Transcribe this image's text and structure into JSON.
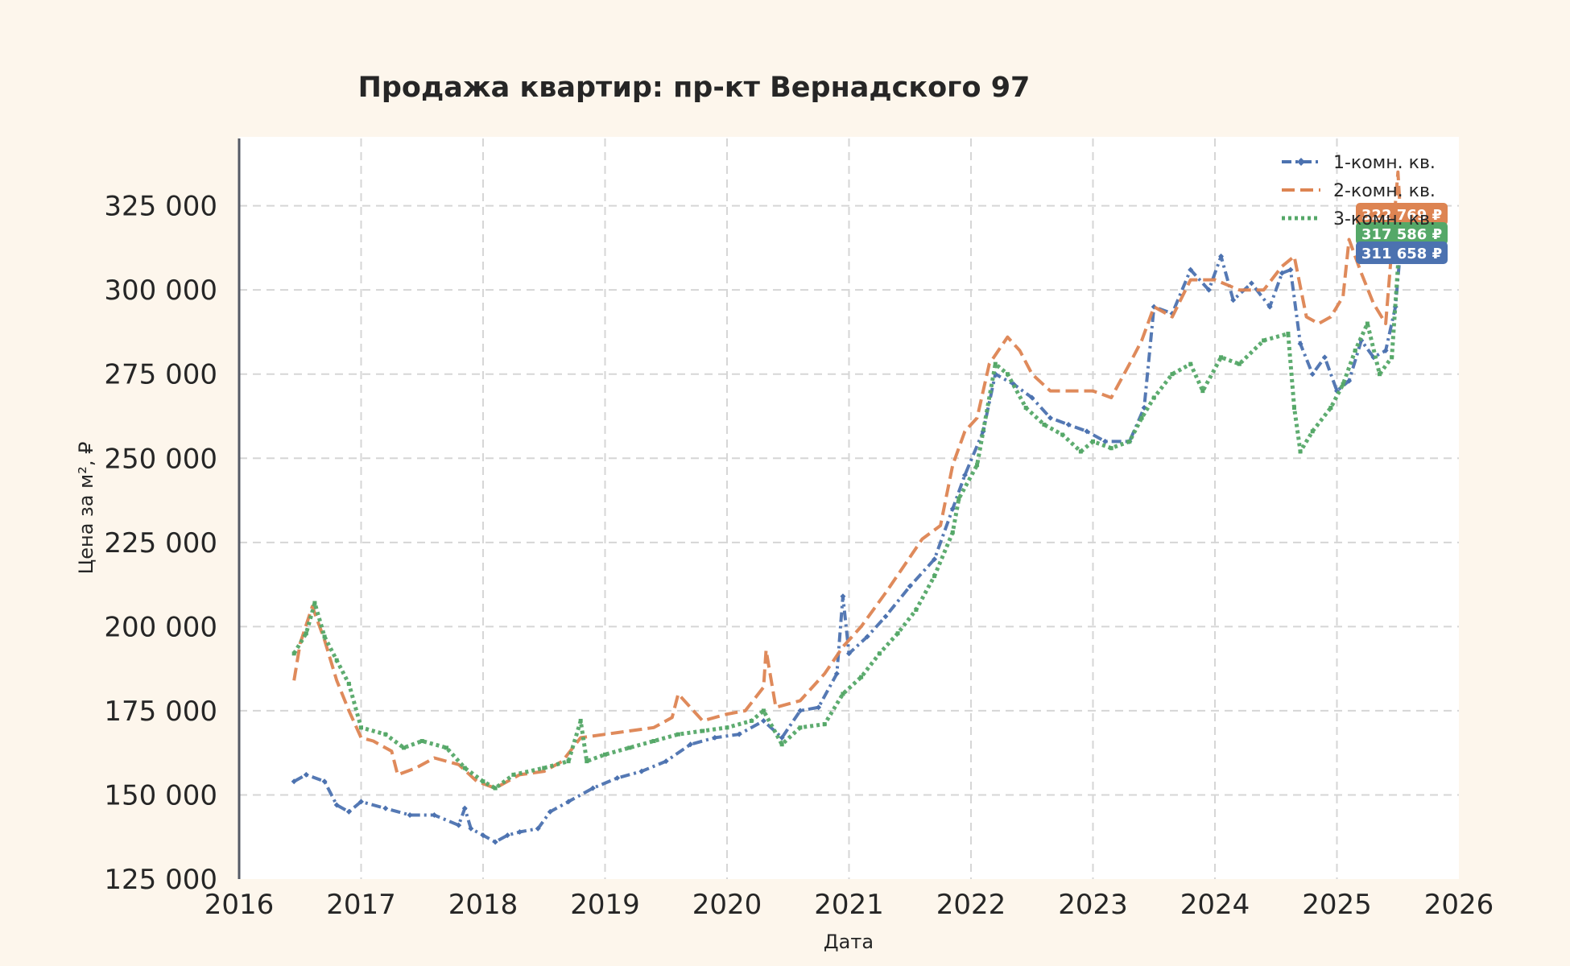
{
  "chart_data": {
    "type": "line",
    "title": "Продажа квартир: пр-кт Вернадского 97",
    "xlabel": "Дата",
    "ylabel": "Цена за м², ₽",
    "xlim": [
      2016,
      2026
    ],
    "ylim": [
      125000,
      345000
    ],
    "x_ticks": [
      2016,
      2017,
      2018,
      2019,
      2020,
      2021,
      2022,
      2023,
      2024,
      2025,
      2026
    ],
    "y_ticks": [
      125000,
      150000,
      175000,
      200000,
      225000,
      250000,
      275000,
      300000,
      325000
    ],
    "y_tick_labels": [
      "125 000",
      "150 000",
      "175 000",
      "200 000",
      "225 000",
      "250 000",
      "275 000",
      "300 000",
      "325 000"
    ],
    "grid": true,
    "legend_position": "top-right",
    "series": [
      {
        "name": "1-комн. кв.",
        "color": "#4c72b0",
        "line_style": "dash-dot",
        "marker": "diamond",
        "last_label": "311 658 ₽",
        "points": [
          [
            2016.45,
            154000
          ],
          [
            2016.55,
            156000
          ],
          [
            2016.7,
            154000
          ],
          [
            2016.8,
            147000
          ],
          [
            2016.9,
            145000
          ],
          [
            2017.0,
            148000
          ],
          [
            2017.2,
            146000
          ],
          [
            2017.4,
            144000
          ],
          [
            2017.6,
            144000
          ],
          [
            2017.8,
            141000
          ],
          [
            2017.85,
            146000
          ],
          [
            2017.9,
            140000
          ],
          [
            2018.0,
            138000
          ],
          [
            2018.1,
            136000
          ],
          [
            2018.2,
            138000
          ],
          [
            2018.3,
            139000
          ],
          [
            2018.45,
            140000
          ],
          [
            2018.55,
            145000
          ],
          [
            2018.7,
            148000
          ],
          [
            2018.9,
            152000
          ],
          [
            2019.1,
            155000
          ],
          [
            2019.3,
            157000
          ],
          [
            2019.5,
            160000
          ],
          [
            2019.7,
            165000
          ],
          [
            2019.9,
            167000
          ],
          [
            2020.1,
            168000
          ],
          [
            2020.3,
            172000
          ],
          [
            2020.45,
            167000
          ],
          [
            2020.6,
            175000
          ],
          [
            2020.75,
            176000
          ],
          [
            2020.9,
            186000
          ],
          [
            2020.95,
            209000
          ],
          [
            2021.0,
            192000
          ],
          [
            2021.15,
            197000
          ],
          [
            2021.3,
            203000
          ],
          [
            2021.5,
            212000
          ],
          [
            2021.7,
            220000
          ],
          [
            2021.85,
            235000
          ],
          [
            2021.95,
            245000
          ],
          [
            2022.1,
            258000
          ],
          [
            2022.2,
            275000
          ],
          [
            2022.35,
            272000
          ],
          [
            2022.5,
            268000
          ],
          [
            2022.65,
            262000
          ],
          [
            2022.8,
            260000
          ],
          [
            2022.95,
            258000
          ],
          [
            2023.1,
            255000
          ],
          [
            2023.3,
            255000
          ],
          [
            2023.42,
            265000
          ],
          [
            2023.5,
            295000
          ],
          [
            2023.65,
            293000
          ],
          [
            2023.8,
            306000
          ],
          [
            2023.95,
            300000
          ],
          [
            2024.05,
            310000
          ],
          [
            2024.15,
            297000
          ],
          [
            2024.3,
            302000
          ],
          [
            2024.45,
            295000
          ],
          [
            2024.55,
            305000
          ],
          [
            2024.62,
            306000
          ],
          [
            2024.7,
            284000
          ],
          [
            2024.8,
            275000
          ],
          [
            2024.9,
            280000
          ],
          [
            2025.0,
            270000
          ],
          [
            2025.1,
            273000
          ],
          [
            2025.2,
            285000
          ],
          [
            2025.3,
            280000
          ],
          [
            2025.4,
            282000
          ],
          [
            2025.48,
            295000
          ],
          [
            2025.52,
            311658
          ]
        ]
      },
      {
        "name": "2-комн. кв.",
        "color": "#dd8452",
        "line_style": "dashed",
        "marker": "none",
        "last_label": "322 769 ₽",
        "points": [
          [
            2016.45,
            184000
          ],
          [
            2016.5,
            195000
          ],
          [
            2016.6,
            206000
          ],
          [
            2016.7,
            196000
          ],
          [
            2016.8,
            184000
          ],
          [
            2016.9,
            175000
          ],
          [
            2017.0,
            167000
          ],
          [
            2017.1,
            166000
          ],
          [
            2017.25,
            163000
          ],
          [
            2017.3,
            156000
          ],
          [
            2017.45,
            158000
          ],
          [
            2017.6,
            161000
          ],
          [
            2017.8,
            159000
          ],
          [
            2017.95,
            154000
          ],
          [
            2018.1,
            152000
          ],
          [
            2018.3,
            156000
          ],
          [
            2018.5,
            157000
          ],
          [
            2018.65,
            160000
          ],
          [
            2018.8,
            167000
          ],
          [
            2019.0,
            168000
          ],
          [
            2019.2,
            169000
          ],
          [
            2019.4,
            170000
          ],
          [
            2019.55,
            173000
          ],
          [
            2019.6,
            180000
          ],
          [
            2019.8,
            172000
          ],
          [
            2020.0,
            174000
          ],
          [
            2020.15,
            175000
          ],
          [
            2020.3,
            182000
          ],
          [
            2020.32,
            193000
          ],
          [
            2020.4,
            176000
          ],
          [
            2020.6,
            178000
          ],
          [
            2020.8,
            186000
          ],
          [
            2020.95,
            194000
          ],
          [
            2021.1,
            200000
          ],
          [
            2021.3,
            210000
          ],
          [
            2021.45,
            218000
          ],
          [
            2021.6,
            226000
          ],
          [
            2021.75,
            230000
          ],
          [
            2021.85,
            248000
          ],
          [
            2021.95,
            258000
          ],
          [
            2022.05,
            262000
          ],
          [
            2022.15,
            278000
          ],
          [
            2022.3,
            286000
          ],
          [
            2022.4,
            282000
          ],
          [
            2022.5,
            275000
          ],
          [
            2022.65,
            270000
          ],
          [
            2022.8,
            270000
          ],
          [
            2023.0,
            270000
          ],
          [
            2023.15,
            268000
          ],
          [
            2023.3,
            278000
          ],
          [
            2023.4,
            285000
          ],
          [
            2023.5,
            295000
          ],
          [
            2023.65,
            292000
          ],
          [
            2023.8,
            303000
          ],
          [
            2024.0,
            303000
          ],
          [
            2024.2,
            300000
          ],
          [
            2024.4,
            300000
          ],
          [
            2024.55,
            307000
          ],
          [
            2024.65,
            310000
          ],
          [
            2024.75,
            292000
          ],
          [
            2024.85,
            290000
          ],
          [
            2024.95,
            292000
          ],
          [
            2025.05,
            298000
          ],
          [
            2025.1,
            315000
          ],
          [
            2025.2,
            305000
          ],
          [
            2025.3,
            296000
          ],
          [
            2025.4,
            290000
          ],
          [
            2025.5,
            335000
          ],
          [
            2025.52,
            322769
          ]
        ]
      },
      {
        "name": "3-комн. кв.",
        "color": "#55a868",
        "line_style": "dotted",
        "marker": "square",
        "last_label": "317 586 ₽",
        "points": [
          [
            2016.45,
            192000
          ],
          [
            2016.55,
            198000
          ],
          [
            2016.62,
            207000
          ],
          [
            2016.7,
            197000
          ],
          [
            2016.8,
            190000
          ],
          [
            2016.9,
            183000
          ],
          [
            2017.0,
            170000
          ],
          [
            2017.2,
            168000
          ],
          [
            2017.35,
            164000
          ],
          [
            2017.5,
            166000
          ],
          [
            2017.7,
            164000
          ],
          [
            2017.85,
            158000
          ],
          [
            2018.0,
            154000
          ],
          [
            2018.1,
            152000
          ],
          [
            2018.25,
            156000
          ],
          [
            2018.5,
            158000
          ],
          [
            2018.7,
            160000
          ],
          [
            2018.8,
            172000
          ],
          [
            2018.85,
            160000
          ],
          [
            2019.0,
            162000
          ],
          [
            2019.2,
            164000
          ],
          [
            2019.4,
            166000
          ],
          [
            2019.6,
            168000
          ],
          [
            2019.8,
            169000
          ],
          [
            2020.0,
            170000
          ],
          [
            2020.2,
            172000
          ],
          [
            2020.3,
            175000
          ],
          [
            2020.45,
            165000
          ],
          [
            2020.6,
            170000
          ],
          [
            2020.8,
            171000
          ],
          [
            2020.95,
            180000
          ],
          [
            2021.1,
            185000
          ],
          [
            2021.25,
            192000
          ],
          [
            2021.4,
            198000
          ],
          [
            2021.55,
            205000
          ],
          [
            2021.7,
            215000
          ],
          [
            2021.85,
            228000
          ],
          [
            2021.9,
            238000
          ],
          [
            2022.05,
            248000
          ],
          [
            2022.2,
            278000
          ],
          [
            2022.3,
            275000
          ],
          [
            2022.45,
            265000
          ],
          [
            2022.6,
            260000
          ],
          [
            2022.75,
            257000
          ],
          [
            2022.9,
            252000
          ],
          [
            2023.0,
            255000
          ],
          [
            2023.15,
            253000
          ],
          [
            2023.3,
            255000
          ],
          [
            2023.4,
            262000
          ],
          [
            2023.5,
            268000
          ],
          [
            2023.65,
            275000
          ],
          [
            2023.8,
            278000
          ],
          [
            2023.9,
            270000
          ],
          [
            2024.05,
            280000
          ],
          [
            2024.2,
            278000
          ],
          [
            2024.4,
            285000
          ],
          [
            2024.6,
            287000
          ],
          [
            2024.65,
            265000
          ],
          [
            2024.7,
            252000
          ],
          [
            2024.8,
            258000
          ],
          [
            2024.95,
            265000
          ],
          [
            2025.05,
            272000
          ],
          [
            2025.15,
            282000
          ],
          [
            2025.25,
            290000
          ],
          [
            2025.35,
            275000
          ],
          [
            2025.45,
            280000
          ],
          [
            2025.52,
            317586
          ]
        ]
      }
    ]
  }
}
